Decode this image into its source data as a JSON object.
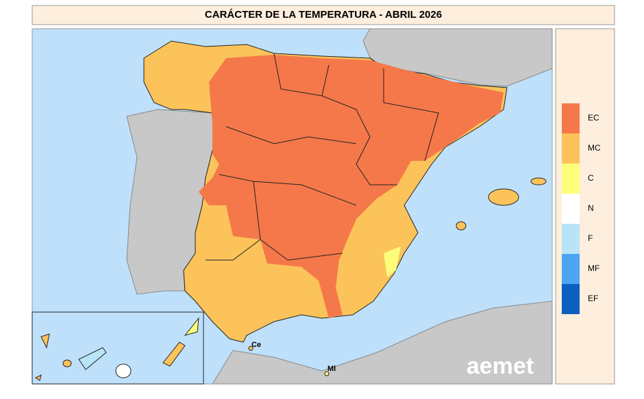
{
  "title": "CARÁCTER DE LA TEMPERATURA - ABRIL 2026",
  "legend": [
    {
      "label": "EC",
      "color": "#f5784a"
    },
    {
      "label": "MC",
      "color": "#fbc35a"
    },
    {
      "label": "C",
      "color": "#fdfd7a"
    },
    {
      "label": "N",
      "color": "#ffffff"
    },
    {
      "label": "F",
      "color": "#b9e4f7"
    },
    {
      "label": "MF",
      "color": "#4da4f2"
    },
    {
      "label": "EF",
      "color": "#0a5fc0"
    }
  ],
  "places": [
    {
      "label": "Ce"
    },
    {
      "label": "Ml"
    }
  ],
  "logo": "aemet"
}
